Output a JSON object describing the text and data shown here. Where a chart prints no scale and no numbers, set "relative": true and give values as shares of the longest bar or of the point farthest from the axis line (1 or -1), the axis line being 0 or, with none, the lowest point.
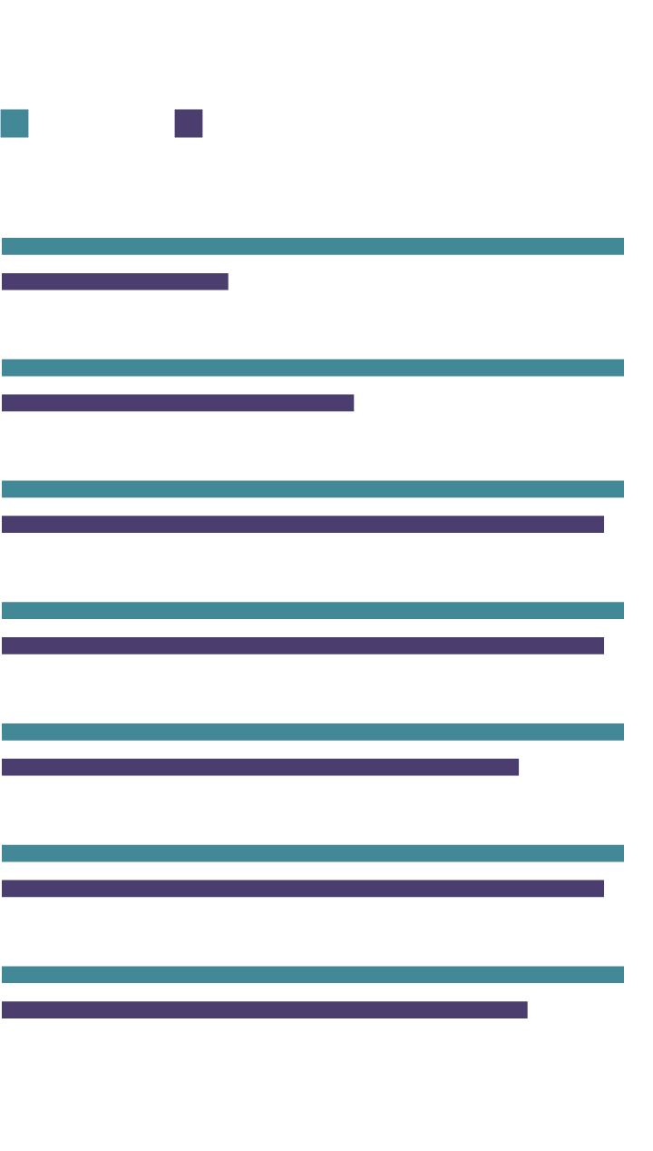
{
  "chart_data": {
    "type": "bar",
    "orientation": "horizontal",
    "relative": true,
    "categories": [
      null,
      null,
      null,
      null,
      null,
      null,
      null
    ],
    "series": [
      {
        "color": "#428896",
        "values": [
          1,
          1,
          1,
          1,
          1,
          1,
          1
        ]
      },
      {
        "color": "#4b3d6e",
        "values": [
          0.364,
          0.566,
          0.968,
          0.968,
          0.831,
          0.968,
          0.845
        ]
      }
    ],
    "grid": false
  }
}
